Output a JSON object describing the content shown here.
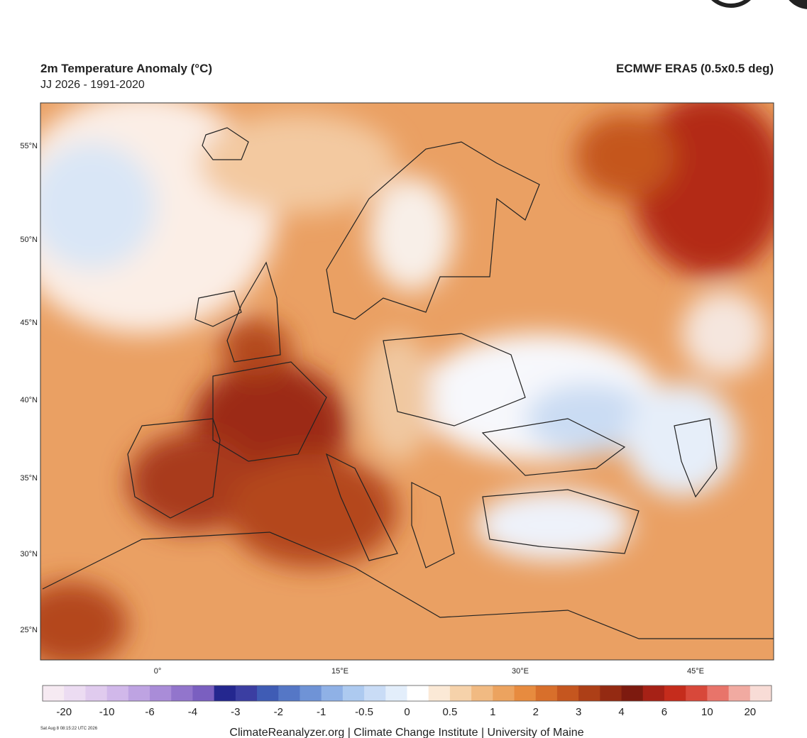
{
  "header": {
    "title": "2m Temperature Anomaly (°C)",
    "subtitle": "JJ 2026 - 1991-2020",
    "dataset": "ECMWF ERA5 (0.5x0.5 deg)"
  },
  "map": {
    "lat_labels": [
      "55°N",
      "50°N",
      "45°N",
      "40°N",
      "35°N",
      "30°N",
      "25°N"
    ],
    "lon_labels": [
      "0°",
      "15°E",
      "30°E",
      "45°E"
    ]
  },
  "colorbar": {
    "labels": [
      "-20",
      "-10",
      "-6",
      "-4",
      "-3",
      "-2",
      "-1",
      "-0.5",
      "0",
      "0.5",
      "1",
      "2",
      "3",
      "4",
      "6",
      "10",
      "20"
    ],
    "colors": [
      "#f6eaf2",
      "#ecdcf2",
      "#e0cbee",
      "#d1b8ea",
      "#bea3e2",
      "#a98cd8",
      "#9275cc",
      "#7a5fc0",
      "#24278f",
      "#3b3ea2",
      "#3f5cb5",
      "#5577c6",
      "#6f93d6",
      "#8fb1e6",
      "#adcaf0",
      "#c9dcf6",
      "#e3eefb",
      "#ffffff",
      "#fbe9d6",
      "#f6d2aa",
      "#f1ba82",
      "#eca35f",
      "#e78b3f",
      "#d86f2b",
      "#c5561f",
      "#ad3f17",
      "#942a12",
      "#7d1a0f",
      "#a62116",
      "#c52c1c",
      "#d8483a",
      "#e8746a",
      "#f1aaa1",
      "#f8dcd6"
    ]
  },
  "footer": {
    "source": "ClimateReanalyzer.org | Climate Change Institute | University of Maine",
    "timestamp": "Sat Aug 8 08:15:22 UTC 2026"
  }
}
